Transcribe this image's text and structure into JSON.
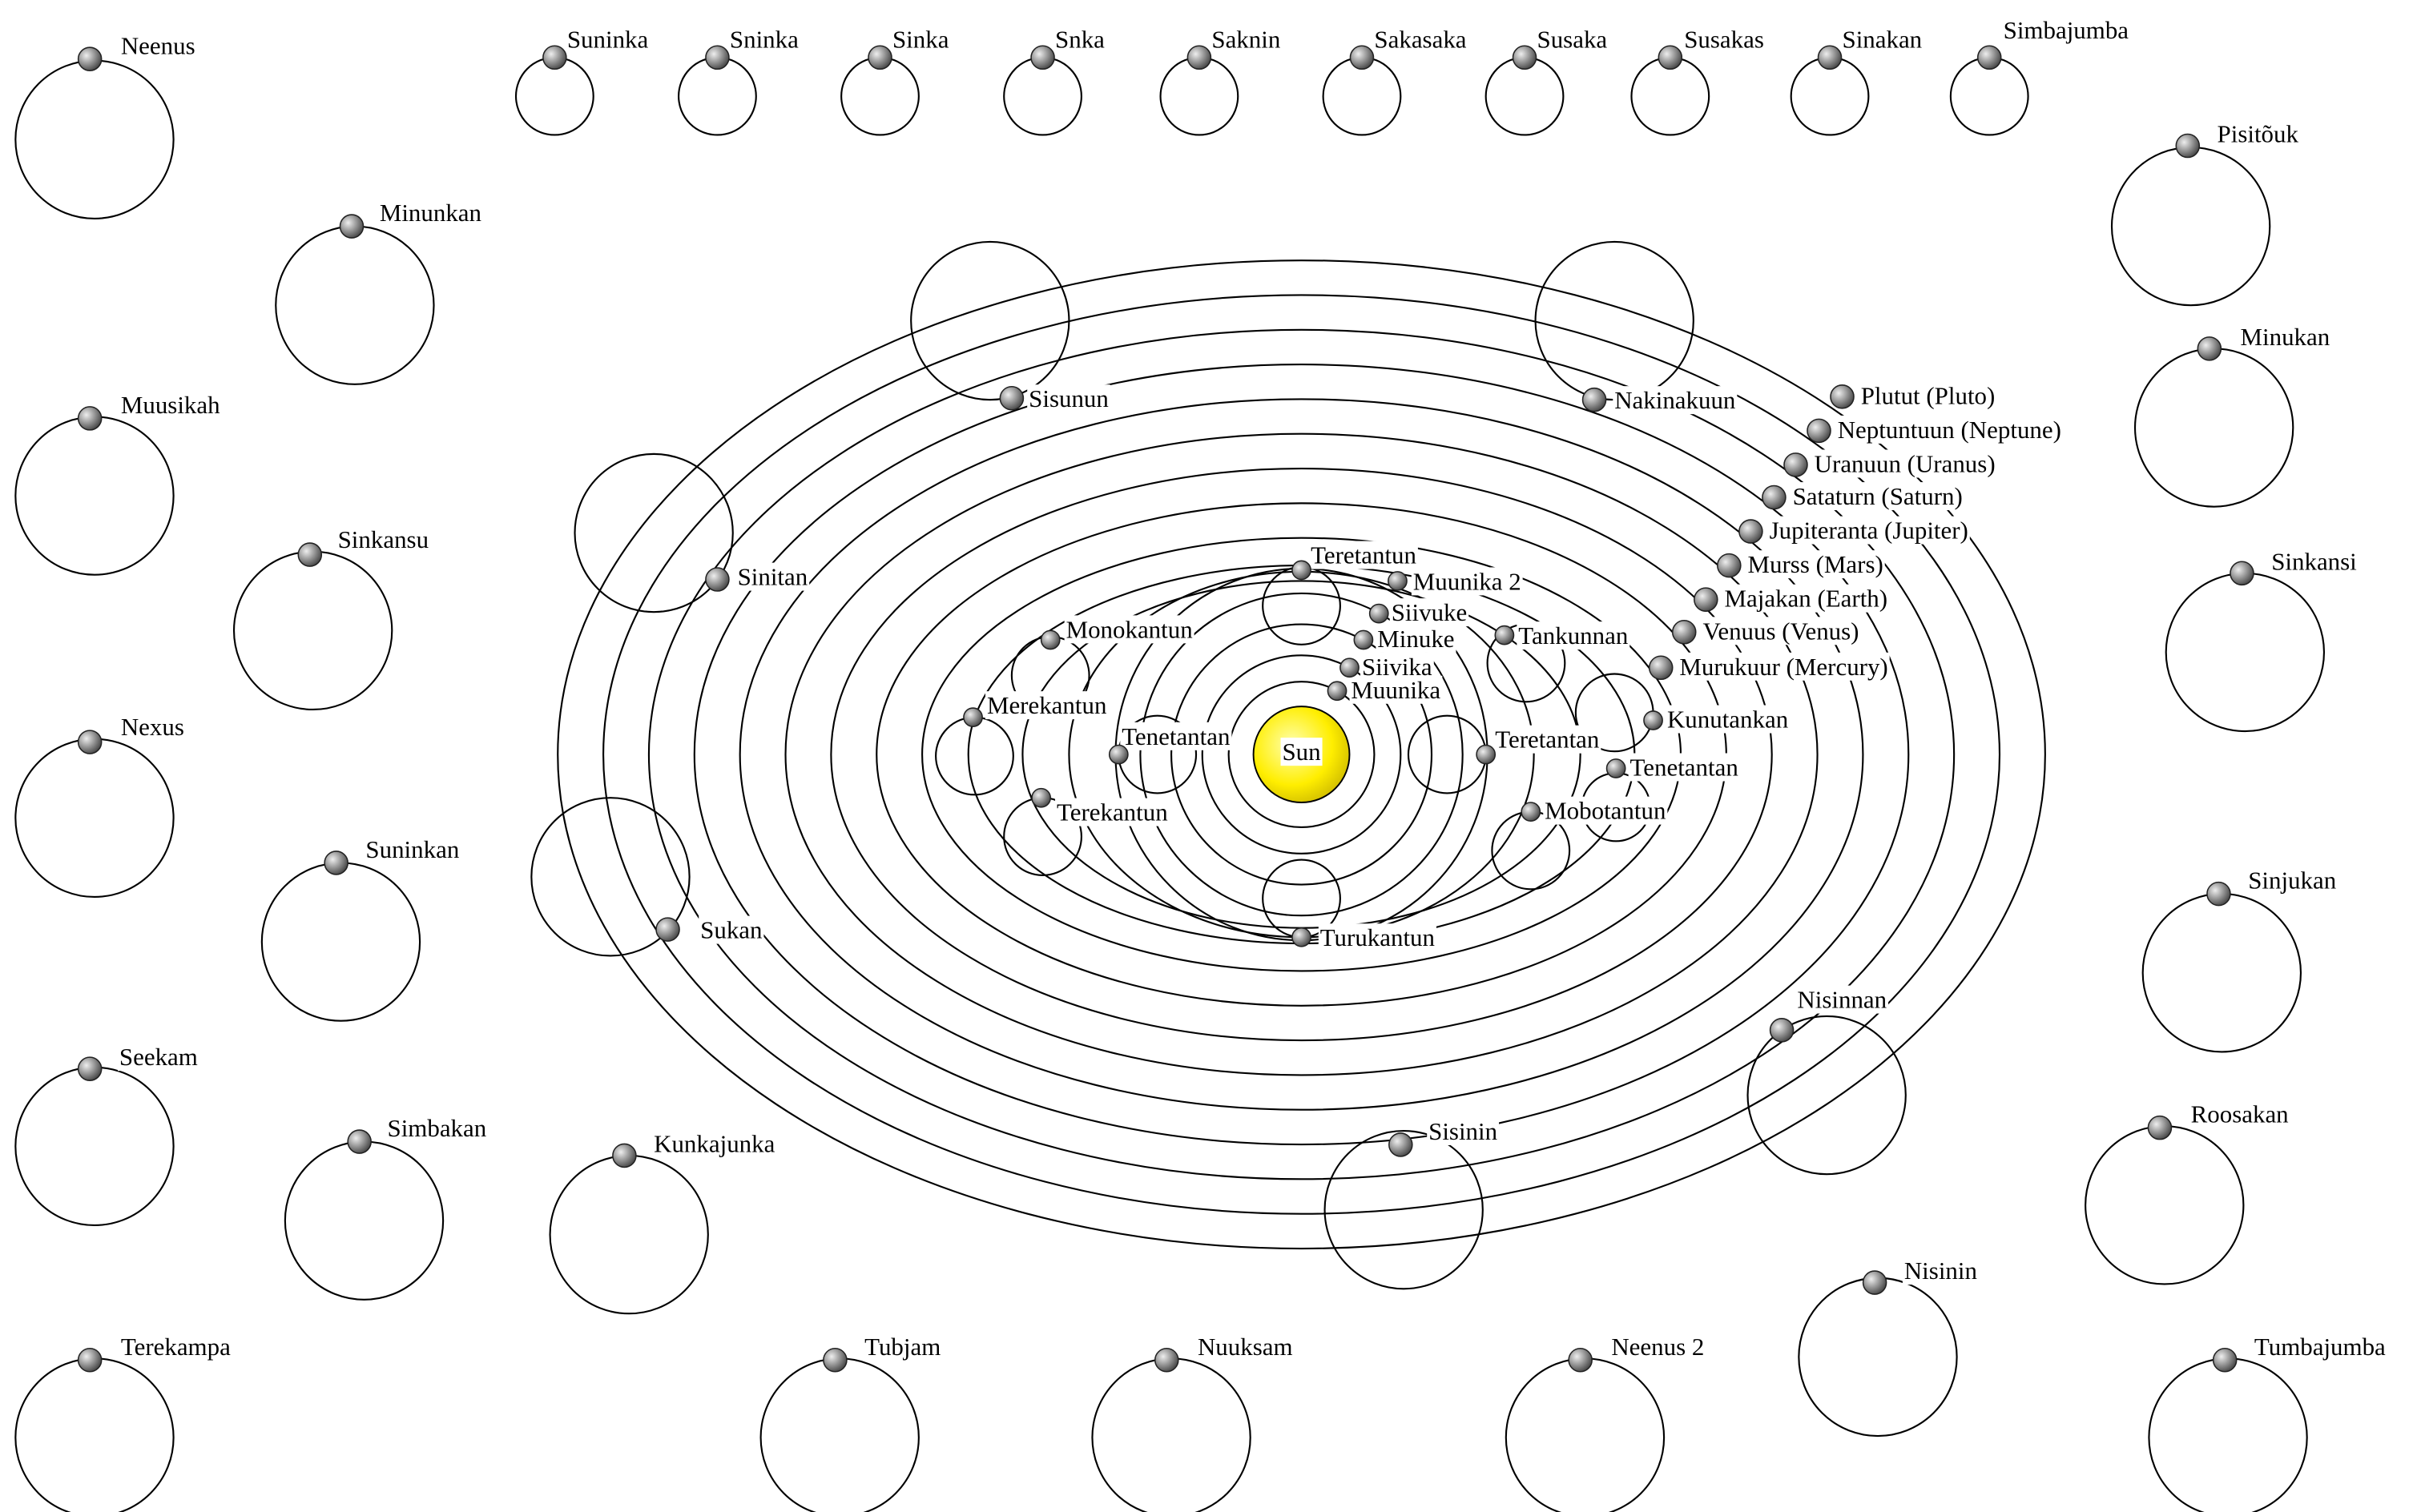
{
  "sun": {
    "label": "Sun"
  },
  "planets": [
    {
      "label": "Plutut (Pluto)"
    },
    {
      "label": "Neptuntuun (Neptune)"
    },
    {
      "label": "Uranuun (Uranus)"
    },
    {
      "label": "Sataturn (Saturn)"
    },
    {
      "label": "Jupiteranta (Jupiter)"
    },
    {
      "label": "Murss (Mars)"
    },
    {
      "label": "Majakan (Earth)"
    },
    {
      "label": "Venuus (Venus)"
    },
    {
      "label": "Murukuur (Mercury)"
    }
  ],
  "bodies": [
    {
      "label": "Neenus"
    },
    {
      "label": "Minunkan"
    },
    {
      "label": "Muusikah"
    },
    {
      "label": "Sinkansu"
    },
    {
      "label": "Nexus"
    },
    {
      "label": "Suninkan"
    },
    {
      "label": "Seekam"
    },
    {
      "label": "Simbakan"
    },
    {
      "label": "Kunkajunka"
    },
    {
      "label": "Terekampa"
    },
    {
      "label": "Tubjam"
    },
    {
      "label": "Nuuksam"
    },
    {
      "label": "Neenus 2"
    },
    {
      "label": "Nisinin"
    },
    {
      "label": "Tumbajumba"
    },
    {
      "label": "Roosakan"
    },
    {
      "label": "Sinjukan"
    },
    {
      "label": "Sinkansi"
    },
    {
      "label": "Minukan"
    },
    {
      "label": "Pisitõuk"
    },
    {
      "label": "Suninka"
    },
    {
      "label": "Sninka"
    },
    {
      "label": "Sinka"
    },
    {
      "label": "Snka"
    },
    {
      "label": "Saknin"
    },
    {
      "label": "Sakasaka"
    },
    {
      "label": "Susaka"
    },
    {
      "label": "Susakas"
    },
    {
      "label": "Sinakan"
    },
    {
      "label": "Simbajumba"
    },
    {
      "label": "Sisunun"
    },
    {
      "label": "Nakinakuun"
    },
    {
      "label": "Sinitan"
    },
    {
      "label": "Sukan"
    },
    {
      "label": "Nisinnan"
    },
    {
      "label": "Sisinin"
    },
    {
      "label": "Teretantun"
    },
    {
      "label": "Muunika 2"
    },
    {
      "label": "Siivuke"
    },
    {
      "label": "Minuke"
    },
    {
      "label": "Siivika"
    },
    {
      "label": "Muunika"
    },
    {
      "label": "Monokantun"
    },
    {
      "label": "Merekantun"
    },
    {
      "label": "Tenetantan"
    },
    {
      "label": "Terekantun"
    },
    {
      "label": "Turukantun"
    },
    {
      "label": "Teretantan"
    },
    {
      "label": "Tankunnan"
    },
    {
      "label": "Kunutankan"
    },
    {
      "label": "Tenetantan"
    },
    {
      "label": "Mobotantun"
    }
  ]
}
